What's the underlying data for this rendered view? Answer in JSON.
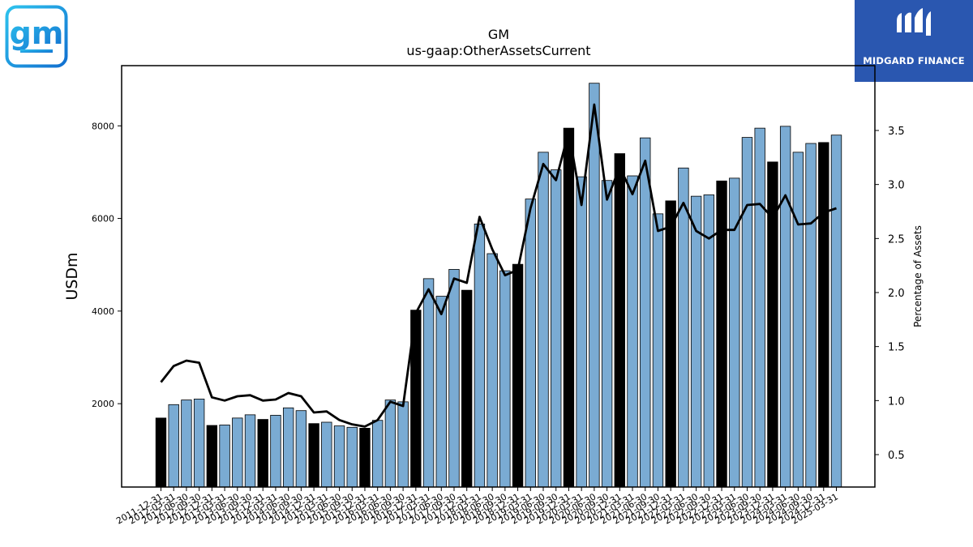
{
  "logo": {
    "text": "gm",
    "icon": "gm-logo-icon"
  },
  "brand": {
    "text": "MIDGARD FINANCE",
    "icon": "midgard-logo-icon",
    "color": "#2a57b0"
  },
  "chart_data": {
    "type": "bar",
    "title": "GM",
    "subtitle": "us-gaap:OtherAssetsCurrent",
    "ylabel": "USDm",
    "y2label": "Percentage of Assets",
    "ylim": [
      200,
      9300
    ],
    "y2lim": [
      0.2,
      4.1
    ],
    "yticks": [
      2000,
      4000,
      6000,
      8000
    ],
    "y2ticks": [
      0.5,
      1.0,
      1.5,
      2.0,
      2.5,
      3.0,
      3.5
    ],
    "bar_color": "#7aabd3",
    "annual_bar_color": "#000000",
    "line_color": "#000000",
    "grid": false,
    "categories": [
      "2011-12-31",
      "2012-03-31",
      "2012-06-30",
      "2012-09-30",
      "2012-12-31",
      "2013-03-31",
      "2013-06-30",
      "2013-09-30",
      "2013-12-31",
      "2014-03-31",
      "2014-06-30",
      "2014-09-30",
      "2014-12-31",
      "2015-03-31",
      "2015-06-30",
      "2015-09-30",
      "2015-12-31",
      "2016-03-31",
      "2016-06-30",
      "2016-09-30",
      "2016-12-31",
      "2017-03-31",
      "2017-06-30",
      "2017-09-30",
      "2017-12-31",
      "2018-03-31",
      "2018-06-30",
      "2018-09-30",
      "2018-12-31",
      "2019-03-31",
      "2019-06-30",
      "2019-09-30",
      "2019-12-31",
      "2020-03-31",
      "2020-06-30",
      "2020-09-30",
      "2020-12-31",
      "2021-03-31",
      "2021-06-30",
      "2021-09-30",
      "2021-12-31",
      "2022-03-31",
      "2022-06-30",
      "2022-09-30",
      "2022-12-31",
      "2023-03-31",
      "2023-06-30",
      "2023-09-30",
      "2023-12-31",
      "2024-03-31",
      "2024-06-30",
      "2024-09-30",
      "2024-12-31",
      "2025-03-31"
    ],
    "series": [
      {
        "kind": "bar",
        "values": [
          1690,
          1980,
          2080,
          2100,
          1530,
          1540,
          1690,
          1760,
          1660,
          1750,
          1910,
          1850,
          1570,
          1600,
          1520,
          1490,
          1470,
          1640,
          2080,
          2040,
          4020,
          4700,
          4320,
          4900,
          4450,
          5880,
          5240,
          4870,
          5010,
          6420,
          7430,
          7050,
          7950,
          6900,
          8920,
          6820,
          7400,
          6920,
          7740,
          6100,
          6380,
          7090,
          6480,
          6510,
          6810,
          6870,
          7750,
          7950,
          7220,
          7990,
          7430,
          7620,
          7640,
          7800
        ],
        "annual": [
          1,
          0,
          0,
          0,
          1,
          0,
          0,
          0,
          1,
          0,
          0,
          0,
          1,
          0,
          0,
          0,
          1,
          0,
          0,
          0,
          1,
          0,
          0,
          0,
          1,
          0,
          0,
          0,
          1,
          0,
          0,
          0,
          1,
          0,
          0,
          0,
          1,
          0,
          0,
          0,
          1,
          0,
          0,
          0,
          1,
          0,
          0,
          0,
          1,
          0,
          0,
          0,
          1,
          0
        ]
      },
      {
        "kind": "line",
        "axis": "right",
        "values": [
          1.17,
          1.32,
          1.37,
          1.35,
          1.03,
          1.0,
          1.04,
          1.05,
          1.0,
          1.01,
          1.07,
          1.04,
          0.89,
          0.9,
          0.82,
          0.78,
          0.76,
          0.82,
          0.99,
          0.95,
          1.81,
          2.03,
          1.8,
          2.13,
          2.09,
          2.7,
          2.4,
          2.16,
          2.21,
          2.78,
          3.19,
          3.04,
          3.49,
          2.81,
          3.74,
          2.86,
          3.16,
          2.91,
          3.22,
          2.57,
          2.61,
          2.83,
          2.57,
          2.5,
          2.58,
          2.58,
          2.81,
          2.82,
          2.69,
          2.9,
          2.63,
          2.64,
          2.74,
          2.78
        ]
      }
    ]
  }
}
